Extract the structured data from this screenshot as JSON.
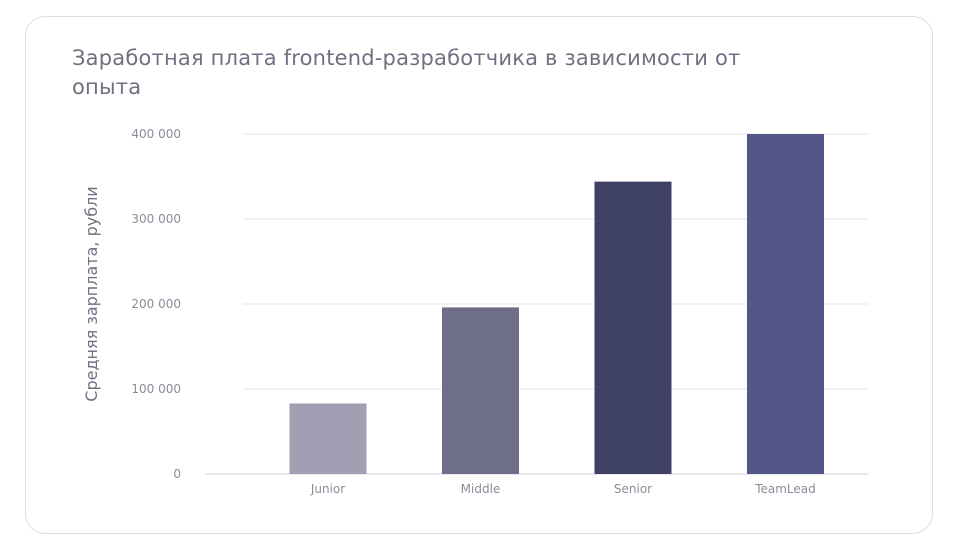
{
  "chart_data": {
    "type": "bar",
    "title": "Заработная плата frontend-разработчика в зависимости от опыта",
    "xlabel": "",
    "ylabel": "Средняя зарплата, рубли",
    "categories": [
      "Junior",
      "Middle",
      "Senior",
      "TeamLead"
    ],
    "values": [
      83000,
      196000,
      344000,
      400000
    ],
    "colors": [
      "#a09fb4",
      "#6f6e8a",
      "#3e4066",
      "#525788"
    ],
    "yticks": [
      0,
      100000,
      200000,
      300000,
      400000
    ],
    "ytick_labels": [
      "0",
      "100 000",
      "200 000",
      "300 000",
      "400 000"
    ],
    "ylim": [
      0,
      400000
    ],
    "grid": true,
    "legend": "none"
  }
}
